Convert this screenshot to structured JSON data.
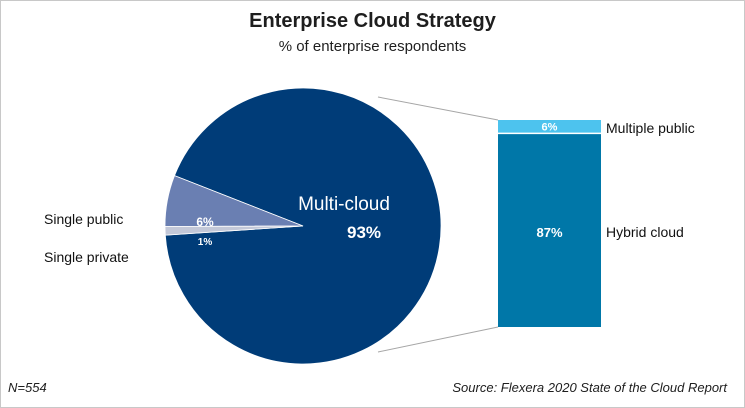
{
  "title": "Enterprise Cloud Strategy",
  "subtitle": "% of enterprise respondents",
  "footer": {
    "n": "N=554",
    "source": "Source: Flexera 2020 State of the Cloud Report"
  },
  "colors": {
    "multi_cloud": "#003c78",
    "single_public": "#6a7fb2",
    "single_private": "#c3c8d8",
    "multiple_public": "#4dc3ee",
    "hybrid_cloud": "#0077a8",
    "connector": "#a6a6a6"
  },
  "chart_data": {
    "type": "pie",
    "title": "Enterprise Cloud Strategy",
    "subtitle": "% of enterprise respondents",
    "slices": [
      {
        "name": "Multi-cloud",
        "value": 93,
        "label": "93%"
      },
      {
        "name": "Single public",
        "value": 6,
        "label": "6%"
      },
      {
        "name": "Single private",
        "value": 1,
        "label": "1%"
      }
    ],
    "breakdown": {
      "of": "Multi-cloud",
      "type": "stacked-bar",
      "segments": [
        {
          "name": "Multiple public",
          "value": 6,
          "label": "6%"
        },
        {
          "name": "Hybrid cloud",
          "value": 87,
          "label": "87%"
        }
      ]
    }
  }
}
